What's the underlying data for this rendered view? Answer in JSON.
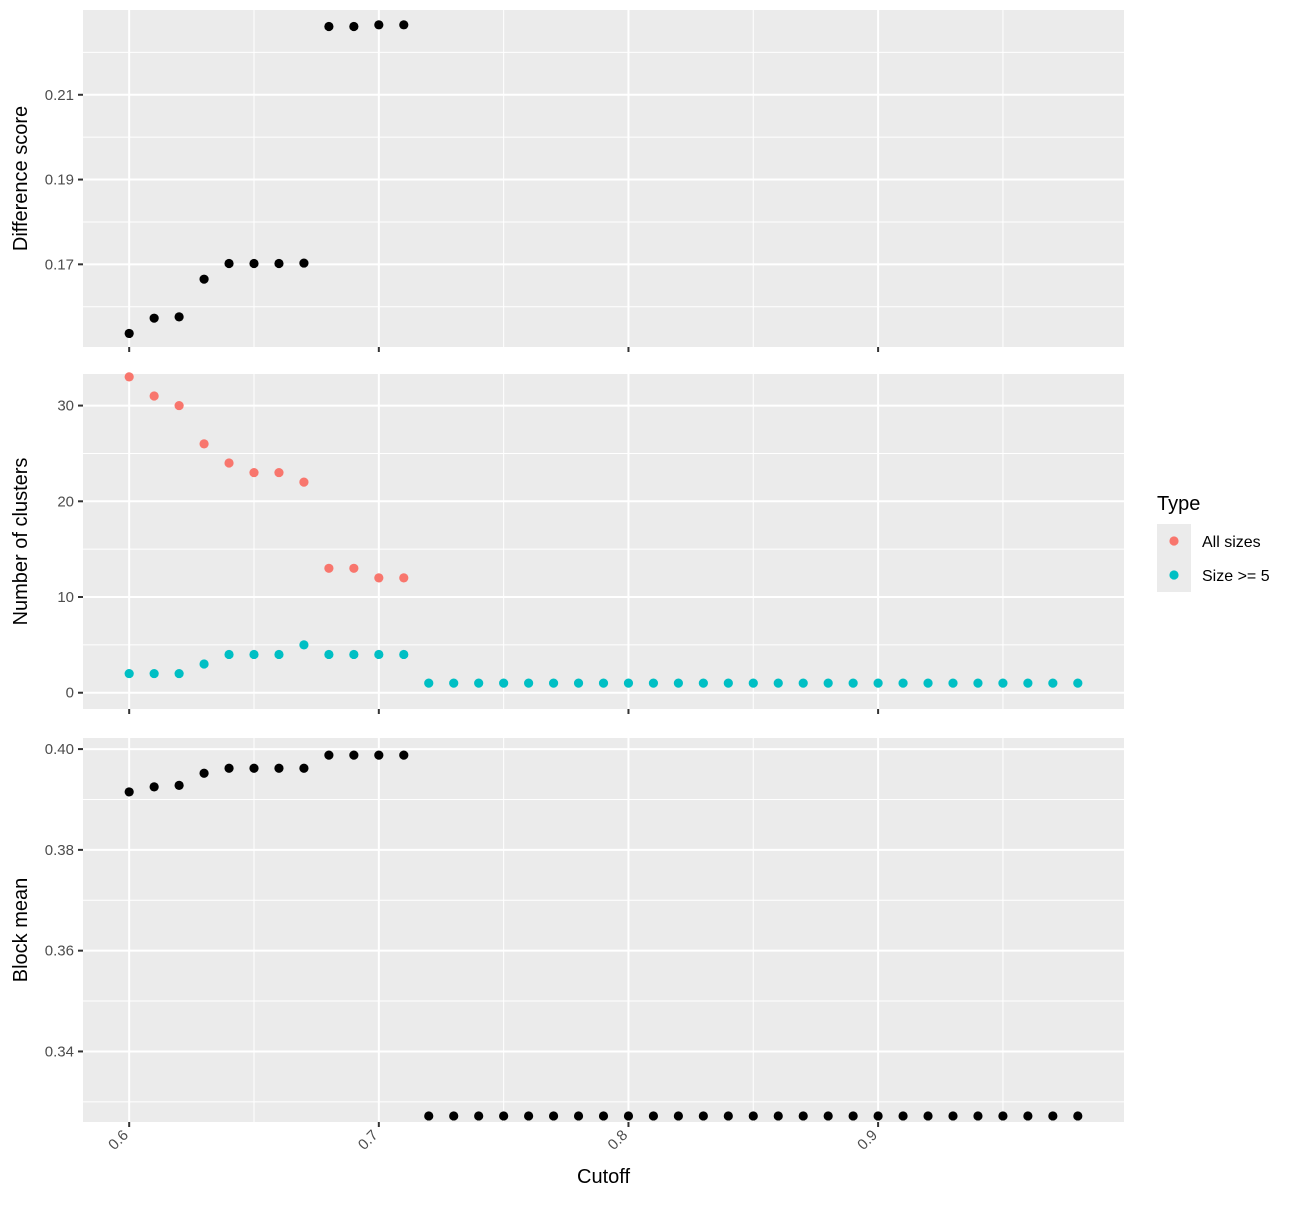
{
  "chart_data": [
    {
      "type": "scatter",
      "panel": "top",
      "ylabel": "Difference score",
      "xlabel": "",
      "xlim": [
        0.5815,
        0.9985
      ],
      "ylim": [
        0.1505,
        0.23
      ],
      "y_major_ticks": [
        0.17,
        0.19,
        0.21
      ],
      "y_minor_ticks": [
        0.16,
        0.18,
        0.2,
        0.22
      ],
      "y_tick_labels": [
        "0.17",
        "0.19",
        "0.21"
      ],
      "x_major_ticks": [
        0.6,
        0.7,
        0.8,
        0.9
      ],
      "x_minor_ticks": [
        0.65,
        0.75,
        0.85,
        0.95
      ],
      "grid": true,
      "point_color": "#000000",
      "series": [
        {
          "x": [
            0.6,
            0.61,
            0.62,
            0.63,
            0.64,
            0.65,
            0.66,
            0.67,
            0.68,
            0.69,
            0.7,
            0.71
          ],
          "values": [
            0.1537,
            0.1573,
            0.1576,
            0.1665,
            0.1702,
            0.1702,
            0.1702,
            0.1703,
            0.2261,
            0.2261,
            0.2265,
            0.2265
          ]
        }
      ]
    },
    {
      "type": "scatter",
      "panel": "middle",
      "ylabel": "Number of clusters",
      "xlabel": "",
      "xlim": [
        0.5815,
        0.9985
      ],
      "ylim": [
        -1.7,
        33.3
      ],
      "y_major_ticks": [
        0,
        10,
        20,
        30
      ],
      "y_minor_ticks": [
        5,
        15,
        25
      ],
      "y_tick_labels": [
        "0",
        "10",
        "20",
        "30"
      ],
      "x_major_ticks": [
        0.6,
        0.7,
        0.8,
        0.9
      ],
      "x_minor_ticks": [
        0.65,
        0.75,
        0.85,
        0.95
      ],
      "grid": true,
      "legend": {
        "title": "Type",
        "position": "right",
        "entries": [
          {
            "label": "All sizes",
            "color": "#F8766D"
          },
          {
            "label": "Size >= 5",
            "color": "#00BFC4"
          }
        ]
      },
      "series": [
        {
          "color": "#F8766D",
          "x": [
            0.6,
            0.61,
            0.62,
            0.63,
            0.64,
            0.65,
            0.66,
            0.67,
            0.68,
            0.69,
            0.7,
            0.71
          ],
          "values": [
            33,
            31,
            30,
            26,
            24,
            23,
            23,
            22,
            13,
            13,
            12,
            12
          ]
        },
        {
          "color": "#00BFC4",
          "x": [
            0.6,
            0.61,
            0.62,
            0.63,
            0.64,
            0.65,
            0.66,
            0.67,
            0.68,
            0.69,
            0.7,
            0.71,
            0.72,
            0.73,
            0.74,
            0.75,
            0.76,
            0.77,
            0.78,
            0.79,
            0.8,
            0.81,
            0.82,
            0.83,
            0.84,
            0.85,
            0.86,
            0.87,
            0.88,
            0.89,
            0.9,
            0.91,
            0.92,
            0.93,
            0.94,
            0.95,
            0.96,
            0.97,
            0.98
          ],
          "values": [
            2,
            2,
            2,
            3,
            4,
            4,
            4,
            5,
            4,
            4,
            4,
            4,
            1,
            1,
            1,
            1,
            1,
            1,
            1,
            1,
            1,
            1,
            1,
            1,
            1,
            1,
            1,
            1,
            1,
            1,
            1,
            1,
            1,
            1,
            1,
            1,
            1,
            1,
            1
          ]
        }
      ]
    },
    {
      "type": "scatter",
      "panel": "bottom",
      "ylabel": "Block mean",
      "xlabel": "Cutoff",
      "xlim": [
        0.5815,
        0.9985
      ],
      "ylim": [
        0.326,
        0.4022
      ],
      "y_major_ticks": [
        0.34,
        0.36,
        0.38,
        0.4
      ],
      "y_minor_ticks": [
        0.33,
        0.35,
        0.37,
        0.39
      ],
      "y_tick_labels": [
        "0.34",
        "0.36",
        "0.38",
        "0.40"
      ],
      "x_major_ticks": [
        0.6,
        0.7,
        0.8,
        0.9
      ],
      "x_minor_ticks": [
        0.65,
        0.75,
        0.85,
        0.95
      ],
      "x_tick_labels": [
        "0.6",
        "0.7",
        "0.8",
        "0.9"
      ],
      "grid": true,
      "point_color": "#000000",
      "series": [
        {
          "x": [
            0.6,
            0.61,
            0.62,
            0.63,
            0.64,
            0.65,
            0.66,
            0.67,
            0.68,
            0.69,
            0.7,
            0.71,
            0.72,
            0.73,
            0.74,
            0.75,
            0.76,
            0.77,
            0.78,
            0.79,
            0.8,
            0.81,
            0.82,
            0.83,
            0.84,
            0.85,
            0.86,
            0.87,
            0.88,
            0.89,
            0.9,
            0.91,
            0.92,
            0.93,
            0.94,
            0.95,
            0.96,
            0.97,
            0.98
          ],
          "values": [
            0.3915,
            0.3925,
            0.3928,
            0.3952,
            0.3962,
            0.3962,
            0.3962,
            0.3962,
            0.3988,
            0.3988,
            0.3988,
            0.3988,
            0.3272,
            0.3272,
            0.3272,
            0.3272,
            0.3272,
            0.3272,
            0.3272,
            0.3272,
            0.3272,
            0.3272,
            0.3272,
            0.3272,
            0.3272,
            0.3272,
            0.3272,
            0.3272,
            0.3272,
            0.3272,
            0.3272,
            0.3272,
            0.3272,
            0.3272,
            0.3272,
            0.3272,
            0.3272,
            0.3272,
            0.3272
          ]
        }
      ]
    }
  ]
}
